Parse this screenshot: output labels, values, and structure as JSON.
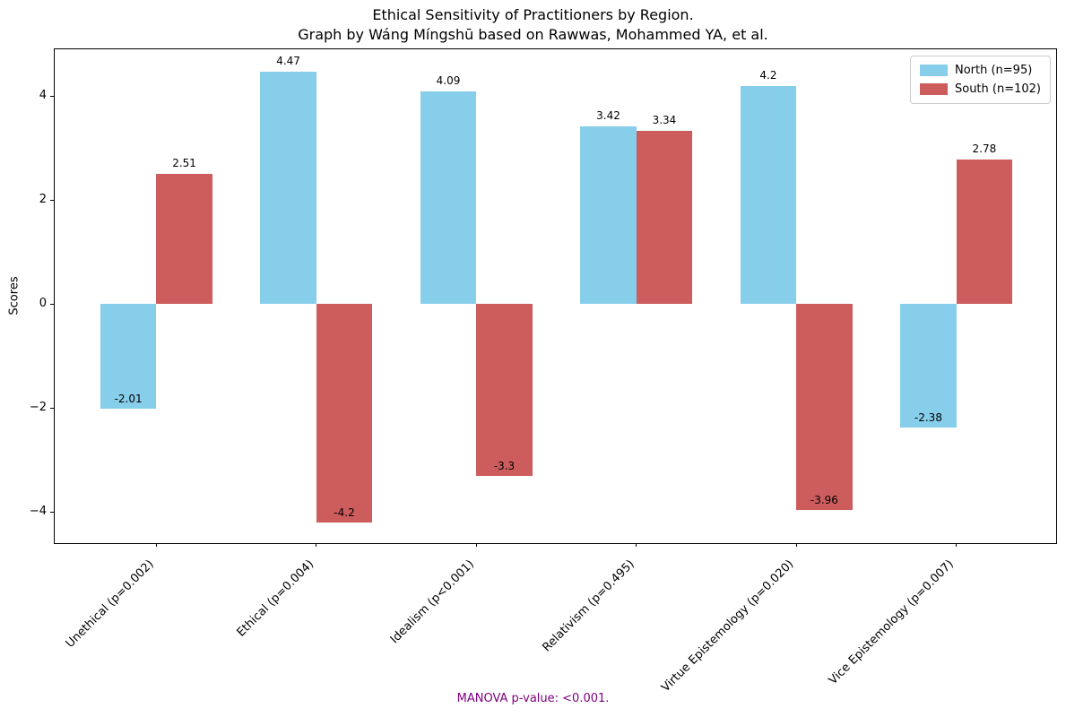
{
  "title": {
    "line1": "Ethical Sensitivity of Practitioners by Region.",
    "line2": "Graph by Wáng Míngshū based on Rawwas, Mohammed YA, et al."
  },
  "chart_data": {
    "type": "bar",
    "title": "Ethical Sensitivity of Practitioners by Region. Graph by Wáng Míngshū based on Rawwas, Mohammed YA, et al.",
    "categories": [
      "Unethical (p=0.002)",
      "Ethical (p=0.004)",
      "Idealism (p<0.001)",
      "Relativism (p=0.495)",
      "Virtue Epistemology (p=0.020)",
      "Vice Epistemology (p=0.007)"
    ],
    "series": [
      {
        "name": "North (n=95)",
        "color": "#87CEEB",
        "values": [
          -2.01,
          4.47,
          4.09,
          3.42,
          4.2,
          -2.38
        ]
      },
      {
        "name": "South (n=102)",
        "color": "#CD5C5C",
        "values": [
          2.51,
          -4.2,
          -3.3,
          3.34,
          -3.96,
          2.78
        ]
      }
    ],
    "xlabel": "",
    "ylabel": "Scores",
    "yticks": [
      -4,
      -2,
      0,
      2,
      4
    ],
    "ylim": [
      -4.63,
      4.9
    ],
    "xlim": [
      -0.635,
      5.635
    ],
    "bar_width": 0.35,
    "grid": false,
    "legend_position": "upper right",
    "annotation": {
      "text": "MANOVA p-value: <0.001.",
      "color": "#800080"
    }
  }
}
